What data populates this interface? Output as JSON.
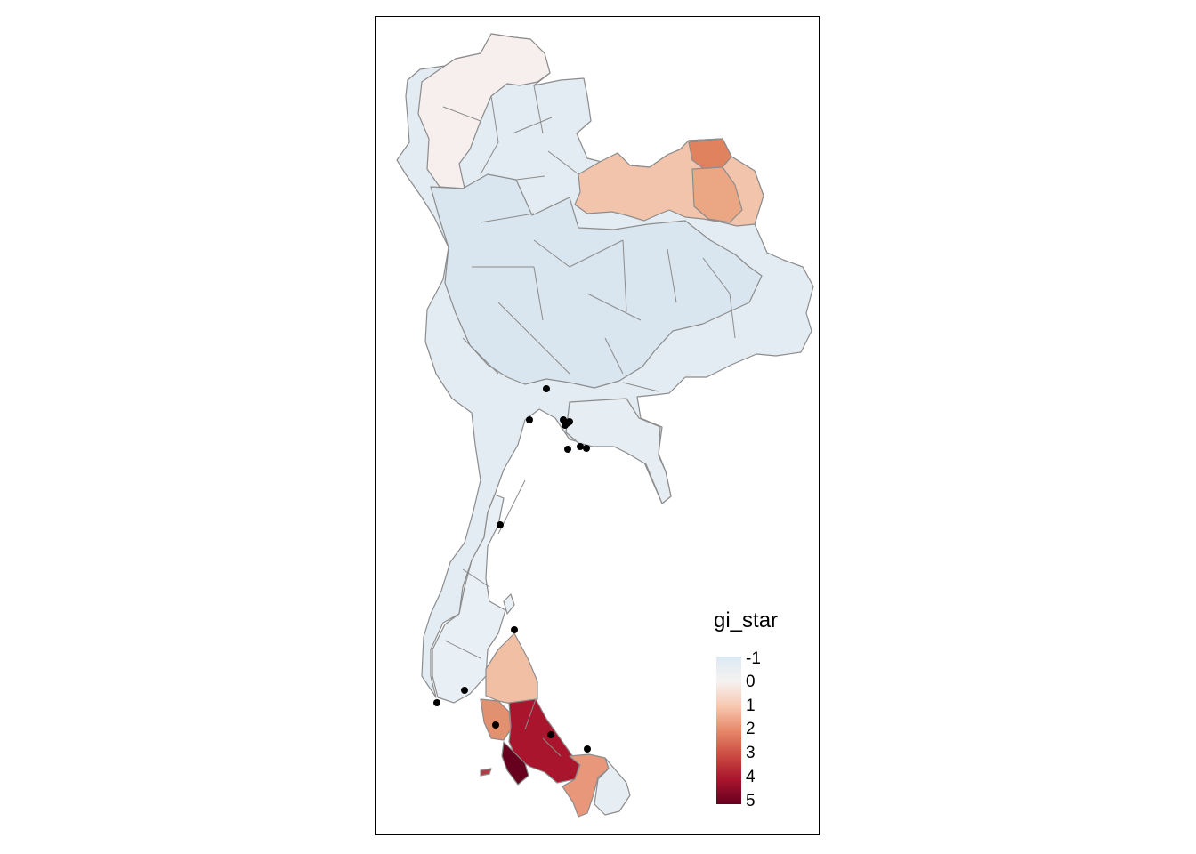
{
  "legend": {
    "title": "gi_star",
    "labels": [
      "-1",
      "0",
      "1",
      "2",
      "3",
      "4",
      "5"
    ],
    "colors": [
      "#dbe9f4",
      "#f5f2f1",
      "#f7c9b1",
      "#e7896b",
      "#cc4c42",
      "#a8152d",
      "#67001f"
    ]
  },
  "map": {
    "point_color": "#000000",
    "border_color": "#8c8c8c",
    "region_colors": {
      "north_west": "#f6efed",
      "north_base": "#e3ecf2",
      "central": "#d9e5ef",
      "north_east_hot": "#f3c4ac",
      "north_east_hotter": "#e1825f",
      "east": "#e6edf3",
      "south_upper": "#e8eff5",
      "south_mid": "#f1c0a4",
      "south_hot": "#a8152d",
      "south_darkest": "#67001f",
      "south_orange": "#e8977a"
    }
  }
}
